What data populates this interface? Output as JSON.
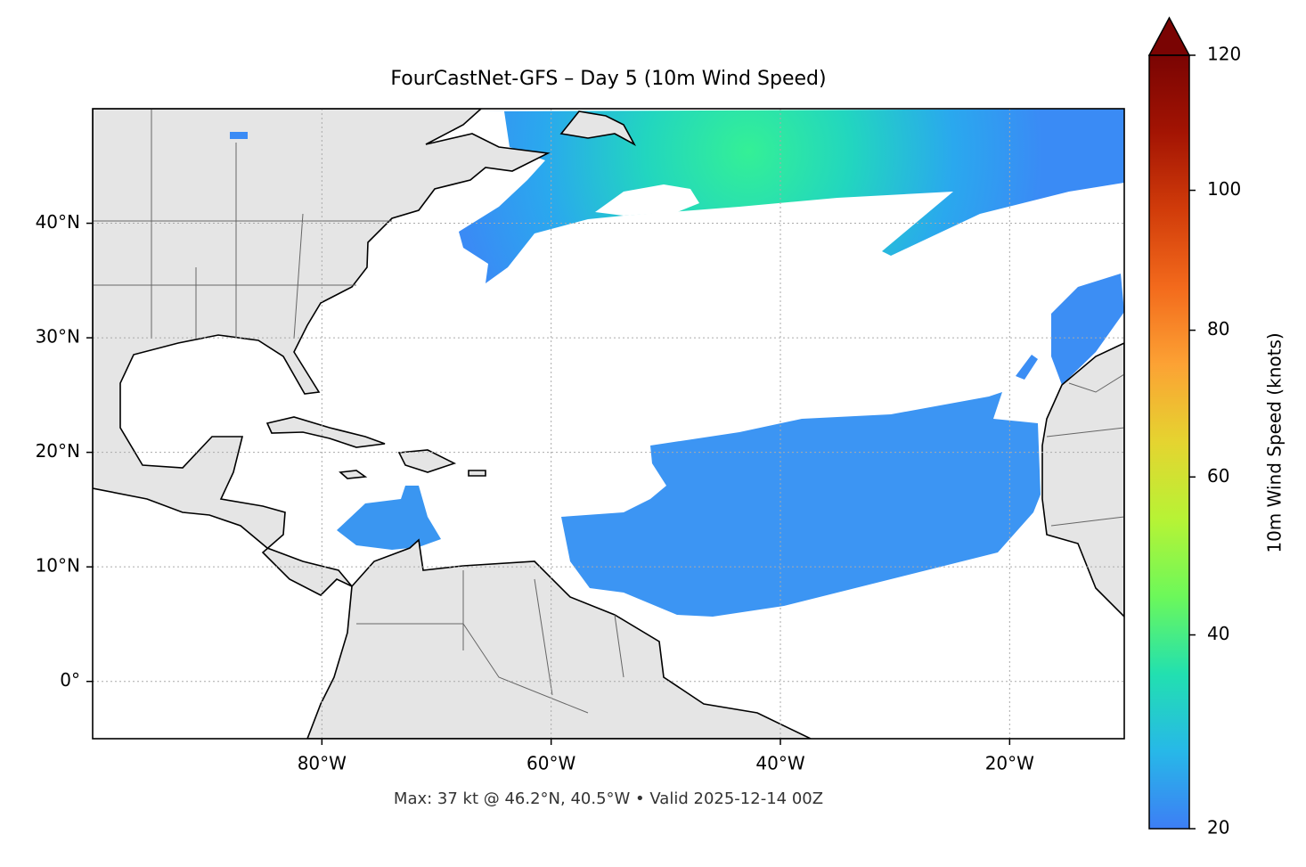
{
  "map": {
    "title": "FourCastNet-GFS – Day 5 (10m Wind Speed)",
    "annotation": "Max: 37 kt @ 46.2°N, 40.5°W • Valid 2025-12-14 00Z",
    "xlim": [
      -100,
      -10
    ],
    "ylim": [
      -5,
      50
    ],
    "xticks": [
      {
        "value": -80,
        "label": "80°W"
      },
      {
        "value": -60,
        "label": "60°W"
      },
      {
        "value": -40,
        "label": "40°W"
      },
      {
        "value": -20,
        "label": "20°W"
      }
    ],
    "yticks": [
      {
        "value": 0,
        "label": "0°"
      },
      {
        "value": 10,
        "label": "10°N"
      },
      {
        "value": 20,
        "label": "20°N"
      },
      {
        "value": 30,
        "label": "30°N"
      },
      {
        "value": 40,
        "label": "40°N"
      }
    ],
    "grid": true,
    "colorbar": {
      "label": "10m Wind Speed (knots)",
      "lim": [
        20,
        120
      ],
      "ticks": [
        20,
        40,
        60,
        80,
        100,
        120
      ],
      "norm": "power",
      "gamma": 0.86,
      "extend": "max",
      "colors": [
        "#3d7ef5",
        "#27b8e8",
        "#22e0b0",
        "#6cf85a",
        "#b7f335",
        "#e5d430",
        "#fca234",
        "#f36a1c",
        "#d13c0a",
        "#a31403",
        "#7a0403"
      ]
    }
  }
}
